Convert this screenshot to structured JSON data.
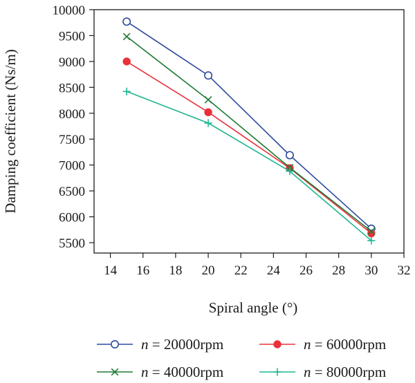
{
  "chart_data": {
    "type": "line",
    "xlabel": "Spiral angle (°)",
    "ylabel": "Damping coefficient (Ns/m)",
    "xlim": [
      13,
      32
    ],
    "ylim": [
      5300,
      10000
    ],
    "xticks": [
      "14",
      "16",
      "18",
      "20",
      "22",
      "24",
      "26",
      "28",
      "30",
      "32"
    ],
    "yticks": [
      "5500",
      "6000",
      "6500",
      "7000",
      "7500",
      "8000",
      "8500",
      "9000",
      "9500",
      "10000"
    ],
    "x": [
      15,
      20,
      25,
      30
    ],
    "series": [
      {
        "name_var": "n",
        "name_rest": " = 20000rpm",
        "marker": "open-circle",
        "color": "#2e4a9e",
        "values": [
          9770,
          8730,
          7190,
          5770
        ]
      },
      {
        "name_var": "n",
        "name_rest": " = 60000rpm",
        "marker": "filled-circle",
        "color": "#e8313a",
        "values": [
          9000,
          8020,
          6940,
          5680
        ]
      },
      {
        "name_var": "n",
        "name_rest": " = 40000rpm",
        "marker": "cross",
        "color": "#1f7a34",
        "values": [
          9480,
          8260,
          6950,
          5720
        ]
      },
      {
        "name_var": "n",
        "name_rest": " = 80000rpm",
        "marker": "plus",
        "color": "#1fb590",
        "values": [
          8420,
          7810,
          6880,
          5540
        ]
      }
    ],
    "grid": false,
    "legend_position": "bottom"
  }
}
